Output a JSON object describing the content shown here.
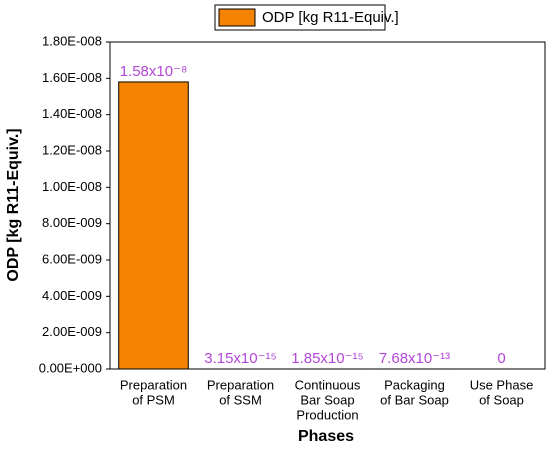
{
  "chart_data": {
    "type": "bar",
    "legend_label": "ODP [kg R11-Equiv.]",
    "y_label": "ODP [kg R11-Equiv.]",
    "x_label": "Phases",
    "categories": [
      [
        "Preparation",
        "of PSM"
      ],
      [
        "Preparation",
        "of SSM"
      ],
      [
        "Continuous",
        "Bar Soap",
        "Production"
      ],
      [
        "Packaging",
        "of Bar Soap"
      ],
      [
        "Use Phase",
        "of Soap"
      ]
    ],
    "values": [
      1.58e-08,
      3.15e-15,
      1.85e-15,
      7.68e-13,
      0
    ],
    "value_labels": [
      "1.58x10⁻⁸",
      "3.15x10⁻¹⁵",
      "1.85x10⁻¹⁵",
      "7.68x10⁻¹³",
      "0"
    ],
    "color": "#f58200",
    "value_label_color": "#b446d8",
    "ylim": [
      0,
      1.8e-08
    ],
    "yticks": [
      {
        "value": 0,
        "label": "0.00E+000"
      },
      {
        "value": 2e-09,
        "label": "2.00E-009"
      },
      {
        "value": 4e-09,
        "label": "4.00E-009"
      },
      {
        "value": 6e-09,
        "label": "6.00E-009"
      },
      {
        "value": 8e-09,
        "label": "8.00E-009"
      },
      {
        "value": 1e-08,
        "label": "1.00E-008"
      },
      {
        "value": 1.2e-08,
        "label": "1.20E-008"
      },
      {
        "value": 1.4e-08,
        "label": "1.40E-008"
      },
      {
        "value": 1.6e-08,
        "label": "1.60E-008"
      },
      {
        "value": 1.8e-08,
        "label": "1.80E-008"
      }
    ]
  }
}
